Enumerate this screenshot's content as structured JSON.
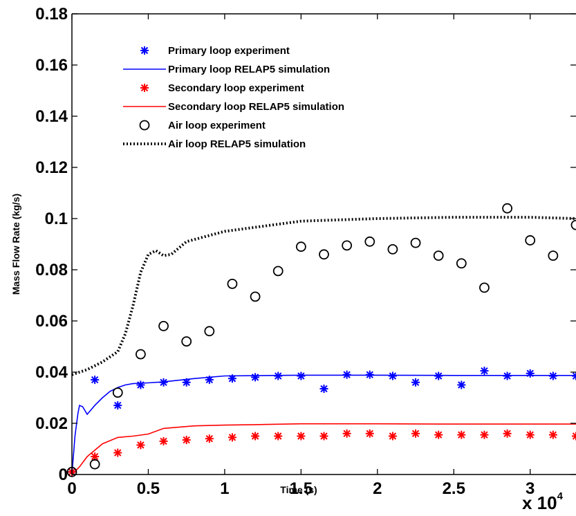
{
  "chart_data": {
    "type": "line",
    "title": "",
    "xlabel": "Time (s)",
    "ylabel": "Mass Flow Rate (kg/s)",
    "x_multiplier_label": {
      "base": "x 10",
      "exponent": "4"
    },
    "xlim": [
      0,
      3.3
    ],
    "ylim": [
      0,
      0.18
    ],
    "x_ticks": [
      "0",
      "0.5",
      "1",
      "1.5",
      "2",
      "2.5",
      "3"
    ],
    "y_ticks": [
      "0",
      "0.02",
      "0.04",
      "0.06",
      "0.08",
      "0.1",
      "0.12",
      "0.14",
      "0.16",
      "0.18"
    ],
    "legend_position": "top-left",
    "grid": false,
    "series": [
      {
        "name": "Primary loop  experiment",
        "style": "marker",
        "marker": "*",
        "color": "#0000ff",
        "x": [
          0,
          0.15,
          0.3,
          0.45,
          0.6,
          0.75,
          0.9,
          1.05,
          1.2,
          1.35,
          1.5,
          1.65,
          1.8,
          1.95,
          2.1,
          2.25,
          2.4,
          2.55,
          2.7,
          2.85,
          3.0,
          3.15,
          3.3
        ],
        "y": [
          0.001,
          0.037,
          0.027,
          0.035,
          0.036,
          0.036,
          0.037,
          0.0375,
          0.038,
          0.0385,
          0.0385,
          0.0335,
          0.039,
          0.039,
          0.0385,
          0.036,
          0.0385,
          0.035,
          0.0405,
          0.0385,
          0.0395,
          0.0385,
          0.0385
        ]
      },
      {
        "name": "Primary loop RELAP5 simulation",
        "style": "line",
        "dash": "solid",
        "color": "#0000ff",
        "x": [
          0,
          0.02,
          0.04,
          0.05,
          0.07,
          0.1,
          0.15,
          0.2,
          0.25,
          0.3,
          0.35,
          0.4,
          0.5,
          0.6,
          0.8,
          1.0,
          1.5,
          2.0,
          2.5,
          3.0,
          3.3
        ],
        "y": [
          0,
          0.015,
          0.024,
          0.027,
          0.0265,
          0.0235,
          0.027,
          0.03,
          0.0325,
          0.034,
          0.035,
          0.0355,
          0.0358,
          0.0362,
          0.0375,
          0.0385,
          0.0388,
          0.0388,
          0.0387,
          0.0387,
          0.0387
        ]
      },
      {
        "name": "Secondary loop experiment",
        "style": "marker",
        "marker": "*",
        "color": "#ff0000",
        "x": [
          0,
          0.15,
          0.3,
          0.45,
          0.6,
          0.75,
          0.9,
          1.05,
          1.2,
          1.35,
          1.5,
          1.65,
          1.8,
          1.95,
          2.1,
          2.25,
          2.4,
          2.55,
          2.7,
          2.85,
          3.0,
          3.15,
          3.3
        ],
        "y": [
          0.001,
          0.007,
          0.0085,
          0.0115,
          0.013,
          0.0135,
          0.014,
          0.0145,
          0.015,
          0.015,
          0.015,
          0.015,
          0.016,
          0.016,
          0.015,
          0.016,
          0.0155,
          0.0155,
          0.0155,
          0.016,
          0.0155,
          0.0155,
          0.015
        ]
      },
      {
        "name": "Secondary loop RELAP5 simulation",
        "style": "line",
        "dash": "solid",
        "color": "#ff0000",
        "x": [
          0,
          0.05,
          0.1,
          0.15,
          0.2,
          0.3,
          0.4,
          0.5,
          0.6,
          0.8,
          1.0,
          1.2,
          1.5,
          2.0,
          2.5,
          3.0,
          3.3
        ],
        "y": [
          0,
          0.003,
          0.007,
          0.0095,
          0.012,
          0.0145,
          0.015,
          0.0158,
          0.018,
          0.019,
          0.0193,
          0.0195,
          0.0198,
          0.0198,
          0.0197,
          0.0197,
          0.0197
        ]
      },
      {
        "name": "Air loop experiment",
        "style": "marker",
        "marker": "o",
        "color": "#000000",
        "x": [
          0,
          0.15,
          0.3,
          0.45,
          0.6,
          0.75,
          0.9,
          1.05,
          1.2,
          1.35,
          1.5,
          1.65,
          1.8,
          1.95,
          2.1,
          2.25,
          2.4,
          2.55,
          2.7,
          2.85,
          3.0,
          3.15,
          3.3
        ],
        "y": [
          0.001,
          0.004,
          0.032,
          0.047,
          0.058,
          0.052,
          0.056,
          0.0745,
          0.0695,
          0.0795,
          0.089,
          0.086,
          0.0895,
          0.091,
          0.088,
          0.0905,
          0.0855,
          0.0825,
          0.073,
          0.104,
          0.0915,
          0.0855,
          0.0975
        ]
      },
      {
        "name": "Air loop RELAP5 simulation",
        "style": "line",
        "dash": "dotted",
        "color": "#000000",
        "x": [
          0,
          0.1,
          0.2,
          0.3,
          0.35,
          0.4,
          0.45,
          0.5,
          0.55,
          0.6,
          0.65,
          0.75,
          1.0,
          1.5,
          2.0,
          2.5,
          3.0,
          3.3
        ],
        "y": [
          0.039,
          0.041,
          0.044,
          0.048,
          0.055,
          0.066,
          0.079,
          0.086,
          0.0875,
          0.0855,
          0.086,
          0.091,
          0.095,
          0.099,
          0.1,
          0.1005,
          0.1005,
          0.1
        ]
      }
    ]
  }
}
